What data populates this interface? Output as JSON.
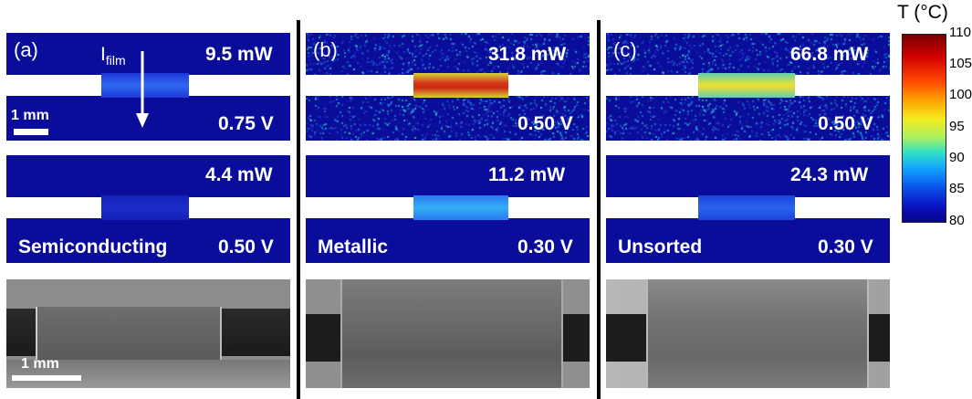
{
  "colorbar": {
    "title": "T (°C)",
    "ticks": [
      "110",
      "105",
      "100",
      "95",
      "90",
      "85",
      "80"
    ]
  },
  "panels": [
    {
      "letter": "(a)",
      "top": {
        "power": "9.5 mW",
        "voltage": "0.75 V"
      },
      "bottom": {
        "power": "4.4 mW",
        "voltage": "0.50 V",
        "material": "Semiconducting"
      },
      "current_label": "I",
      "current_sub": "film",
      "scale_thermal": "1 mm",
      "scale_sem": "1 mm"
    },
    {
      "letter": "(b)",
      "top": {
        "power": "31.8 mW",
        "voltage": "0.50 V"
      },
      "bottom": {
        "power": "11.2 mW",
        "voltage": "0.30 V",
        "material": "Metallic"
      }
    },
    {
      "letter": "(c)",
      "top": {
        "power": "66.8 mW",
        "voltage": "0.50 V"
      },
      "bottom": {
        "power": "24.3 mW",
        "voltage": "0.30 V",
        "material": "Unsorted"
      }
    }
  ],
  "colors": {
    "thermal_background": "#0a0d9a",
    "divider": "#000000"
  }
}
